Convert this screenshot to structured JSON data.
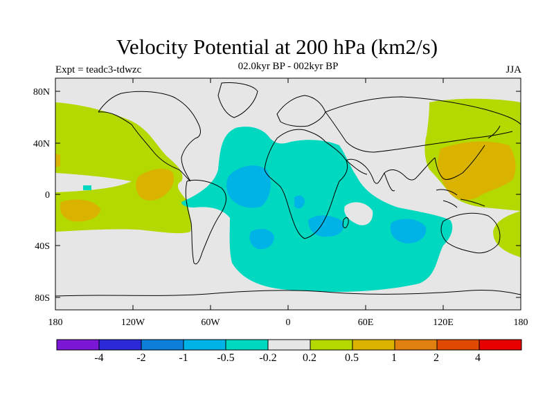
{
  "title": "Velocity Potential at 200 hPa (km2/s)",
  "subtitle": "02.0kyr BP - 002kyr BP",
  "left_label": "Expt = teadc3-tdwzc",
  "right_label": "JJA",
  "axes": {
    "x_ticks": [
      "180",
      "120W",
      "60W",
      "0",
      "60E",
      "120E",
      "180"
    ],
    "y_ticks": [
      "80N",
      "40N",
      "0",
      "40S",
      "80S"
    ]
  },
  "colorbar": {
    "colors": [
      "#7b18d6",
      "#2a2ad8",
      "#0c7fd8",
      "#00b3e6",
      "#00d9bf",
      "#e6e6e6",
      "#b3d900",
      "#d9b300",
      "#e08010",
      "#e04a00",
      "#e60000"
    ],
    "labels": [
      "-4",
      "-2",
      "-1",
      "-0.5",
      "-0.2",
      "0.2",
      "0.5",
      "1",
      "2",
      "4"
    ]
  },
  "legend_colors": {
    "neutral": "#e6e6e6",
    "pos_weak": "#b3d900",
    "pos_mid": "#d9b300",
    "neg_weak": "#00d9bf",
    "neg_mid": "#00b3e6"
  }
}
